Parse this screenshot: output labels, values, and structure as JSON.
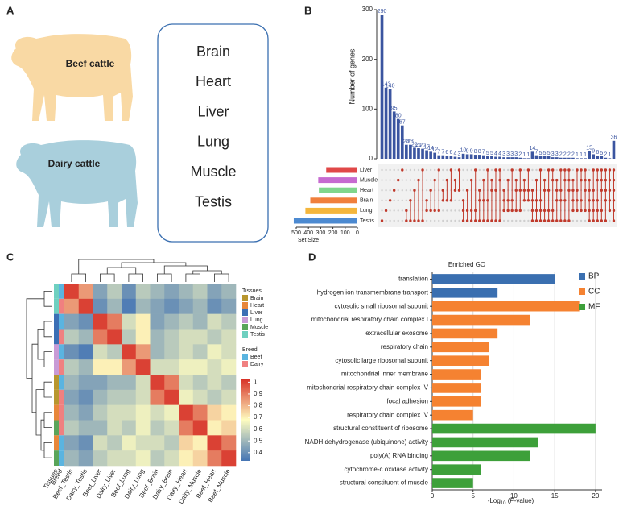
{
  "panel_labels": [
    "A",
    "B",
    "C",
    "D"
  ],
  "panel_a": {
    "breeds": [
      "Beef cattle",
      "Dairy cattle"
    ],
    "breed_colors": [
      "#f9d9a4",
      "#a9cfdc"
    ],
    "tissues": [
      "Brain",
      "Heart",
      "Liver",
      "Lung",
      "Muscle",
      "Testis"
    ]
  },
  "chart_data": [
    {
      "type": "upset",
      "y_label": "Number of genes",
      "ylim": [
        0,
        300
      ],
      "yticks": [
        0,
        100,
        200,
        300
      ],
      "bar_color": "#3b55a0",
      "dot_color": "#c0392b",
      "values": [
        290,
        143,
        140,
        95,
        80,
        67,
        28,
        28,
        22,
        21,
        20,
        17,
        14,
        12,
        7,
        7,
        6,
        6,
        4,
        3,
        10,
        9,
        9,
        8,
        8,
        7,
        5,
        5,
        4,
        4,
        3,
        3,
        3,
        3,
        2,
        1,
        1,
        14,
        7,
        5,
        5,
        5,
        3,
        3,
        2,
        2,
        2,
        2,
        1,
        1,
        1,
        15,
        9,
        6,
        5,
        2,
        1,
        36
      ],
      "members": [
        [
          5
        ],
        [
          4
        ],
        [
          3
        ],
        [
          2
        ],
        [
          1
        ],
        [
          0
        ],
        [
          4,
          5
        ],
        [
          3,
          5
        ],
        [
          2,
          5
        ],
        [
          1,
          5
        ],
        [
          0,
          5
        ],
        [
          3,
          4
        ],
        [
          2,
          4
        ],
        [
          1,
          4
        ],
        [
          0,
          4
        ],
        [
          2,
          3
        ],
        [
          1,
          3
        ],
        [
          0,
          3
        ],
        [
          1,
          2
        ],
        [
          0,
          2
        ],
        [
          3,
          4,
          5
        ],
        [
          2,
          4,
          5
        ],
        [
          1,
          4,
          5
        ],
        [
          0,
          4,
          5
        ],
        [
          2,
          3,
          5
        ],
        [
          1,
          3,
          5
        ],
        [
          0,
          3,
          5
        ],
        [
          1,
          2,
          5
        ],
        [
          0,
          2,
          5
        ],
        [
          0,
          1,
          5
        ],
        [
          2,
          3,
          4
        ],
        [
          1,
          3,
          4
        ],
        [
          0,
          3,
          4
        ],
        [
          1,
          2,
          4
        ],
        [
          0,
          2,
          4
        ],
        [
          1,
          2,
          3
        ],
        [
          0,
          2,
          3
        ],
        [
          2,
          3,
          4,
          5
        ],
        [
          1,
          3,
          4,
          5
        ],
        [
          0,
          3,
          4,
          5
        ],
        [
          1,
          2,
          4,
          5
        ],
        [
          0,
          2,
          4,
          5
        ],
        [
          0,
          1,
          4,
          5
        ],
        [
          1,
          2,
          3,
          5
        ],
        [
          0,
          2,
          3,
          5
        ],
        [
          0,
          1,
          3,
          5
        ],
        [
          0,
          1,
          2,
          5
        ],
        [
          1,
          2,
          3,
          4
        ],
        [
          0,
          2,
          3,
          4
        ],
        [
          0,
          1,
          3,
          4
        ],
        [
          0,
          1,
          2,
          4
        ],
        [
          1,
          2,
          3,
          4,
          5
        ],
        [
          0,
          2,
          3,
          4,
          5
        ],
        [
          0,
          1,
          3,
          4,
          5
        ],
        [
          0,
          1,
          2,
          4,
          5
        ],
        [
          0,
          1,
          2,
          3,
          5
        ],
        [
          0,
          1,
          2,
          3,
          4
        ],
        [
          0,
          1,
          2,
          3,
          4,
          5
        ]
      ],
      "sets": [
        "Liver",
        "Muscle",
        "Heart",
        "Brain",
        "Lung",
        "Testis"
      ],
      "set_colors": [
        "#e04848",
        "#c66bd0",
        "#7fd68c",
        "#f07f3c",
        "#f4b63c",
        "#4c8ad1"
      ],
      "set_sizes": [
        255,
        320,
        315,
        385,
        425,
        520
      ],
      "set_size_label": "Set Size",
      "set_size_xlim": [
        0,
        500
      ],
      "set_size_ticks": [
        500,
        400,
        300,
        200,
        100,
        0
      ]
    },
    {
      "type": "heatmap",
      "categories": [
        "Beef_Testis",
        "Dairy_Testis",
        "Beef_Liver",
        "Dairy_Liver",
        "Beef_Lung",
        "Dairy_Lung",
        "Beef_Brain",
        "Dairy_Brain",
        "Dairy_Heart",
        "Dairy_Muscle",
        "Beef_Heart",
        "Beef_Muscle"
      ],
      "values": [
        [
          1,
          0.85,
          0.45,
          0.55,
          0.4,
          0.55,
          0.5,
          0.45,
          0.5,
          0.55,
          0.45,
          0.5
        ],
        [
          0.85,
          1,
          0.4,
          0.5,
          0.35,
          0.5,
          0.45,
          0.4,
          0.45,
          0.5,
          0.4,
          0.45
        ],
        [
          0.45,
          0.4,
          1,
          0.9,
          0.6,
          0.7,
          0.45,
          0.5,
          0.55,
          0.5,
          0.6,
          0.55
        ],
        [
          0.55,
          0.5,
          0.9,
          1,
          0.55,
          0.7,
          0.5,
          0.55,
          0.6,
          0.6,
          0.55,
          0.6
        ],
        [
          0.4,
          0.35,
          0.6,
          0.55,
          1,
          0.85,
          0.5,
          0.55,
          0.6,
          0.55,
          0.65,
          0.6
        ],
        [
          0.55,
          0.5,
          0.7,
          0.7,
          0.85,
          1,
          0.6,
          0.6,
          0.65,
          0.65,
          0.6,
          0.65
        ],
        [
          0.5,
          0.45,
          0.45,
          0.5,
          0.5,
          0.6,
          1,
          0.9,
          0.6,
          0.55,
          0.6,
          0.55
        ],
        [
          0.45,
          0.4,
          0.5,
          0.55,
          0.55,
          0.6,
          0.9,
          1,
          0.65,
          0.6,
          0.55,
          0.6
        ],
        [
          0.5,
          0.45,
          0.55,
          0.6,
          0.6,
          0.65,
          0.6,
          0.65,
          1,
          0.9,
          0.75,
          0.7
        ],
        [
          0.55,
          0.5,
          0.5,
          0.6,
          0.55,
          0.65,
          0.55,
          0.6,
          0.9,
          1,
          0.7,
          0.75
        ],
        [
          0.45,
          0.4,
          0.6,
          0.55,
          0.65,
          0.6,
          0.6,
          0.55,
          0.75,
          0.7,
          1,
          0.9
        ],
        [
          0.5,
          0.45,
          0.55,
          0.6,
          0.6,
          0.65,
          0.55,
          0.6,
          0.7,
          0.75,
          0.9,
          1
        ]
      ],
      "clim": [
        0.33,
        1.03
      ],
      "cticks": [
        0.4,
        0.5,
        0.6,
        0.7,
        0.8,
        0.9,
        1
      ],
      "colors": [
        "#4575b4",
        "#fefcc0",
        "#d73027"
      ],
      "annotation_labels": [
        "Tissues",
        "Breed"
      ],
      "tissue_legend_title": "Tissues",
      "tissue_names": [
        "Brain",
        "Heart",
        "Liver",
        "Lung",
        "Muscle",
        "Testis"
      ],
      "tissue_colors": [
        "#b8962e",
        "#e8873a",
        "#3b6fb5",
        "#c89ad6",
        "#5aa55a",
        "#6ed0c0"
      ],
      "breed_legend_title": "Breed",
      "breed_names": [
        "Beef",
        "Dairy"
      ],
      "breed_colors": [
        "#5ab4e0",
        "#f08080"
      ]
    },
    {
      "type": "bar",
      "title": "Enriched GO",
      "categories": [
        "translation",
        "hydrogen ion transmembrane transport",
        "cytosolic small ribosomal subunit",
        "mitochondrial respiratory chain complex I",
        "extracellular exosome",
        "respiratory chain",
        "cytosolic large ribosomal subunit",
        "mitochondrial inner membrane",
        "mitochondrial respiratory chain complex IV",
        "focal adhesion",
        "respiratory chain complex IV",
        "structural constituent of ribosome",
        "NADH dehydrogenase (ubiquinone) activity",
        "poly(A) RNA binding",
        "cytochrome-c oxidase activity",
        "structural constituent of muscle"
      ],
      "series": [
        {
          "name": "BP",
          "color": "#3a6fb0",
          "values": [
            15,
            8,
            null,
            null,
            null,
            null,
            null,
            null,
            null,
            null,
            null,
            null,
            null,
            null,
            null,
            null
          ]
        },
        {
          "name": "CC",
          "color": "#f58231",
          "values": [
            null,
            null,
            18,
            12,
            8,
            7,
            7,
            6,
            6,
            6,
            5,
            null,
            null,
            null,
            null,
            null
          ]
        },
        {
          "name": "MF",
          "color": "#3da03a",
          "values": [
            null,
            null,
            null,
            null,
            null,
            null,
            null,
            null,
            null,
            null,
            null,
            20,
            13,
            12,
            6,
            5
          ]
        }
      ],
      "xlim": [
        0,
        20.8
      ],
      "xticks": [
        0,
        5,
        10,
        15,
        20
      ],
      "grid": true,
      "x_label": {
        "pre": "-Log",
        "sub": "10",
        "mid": " (",
        "italic": "P",
        "post": "-value)"
      }
    }
  ]
}
